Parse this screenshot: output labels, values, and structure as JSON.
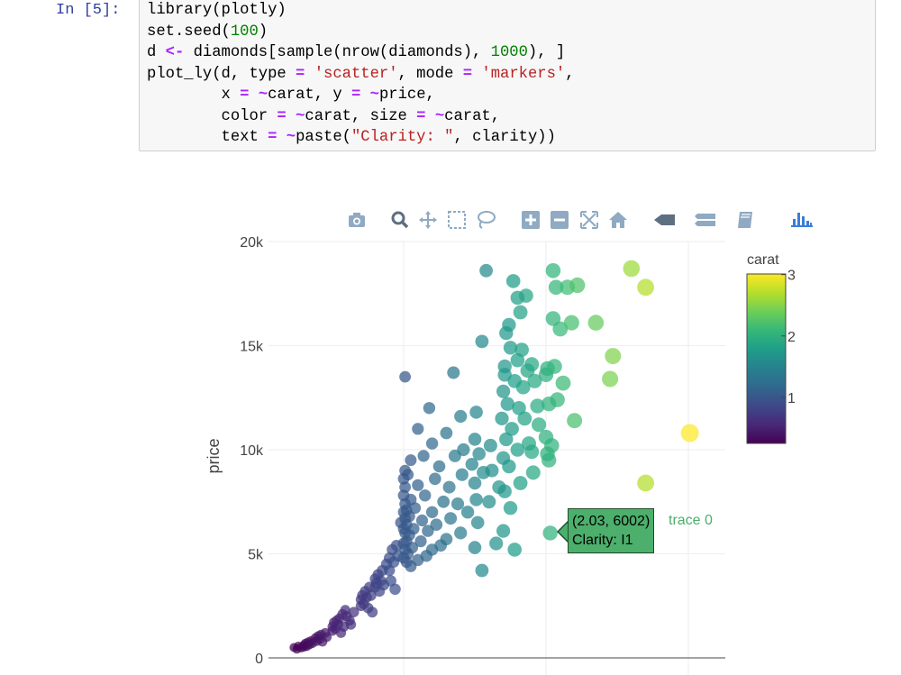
{
  "notebook": {
    "prompt": "In [5]:",
    "code_lines": [
      [
        [
          "plain",
          "library(plotly)"
        ]
      ],
      [
        [
          "plain",
          "set.seed("
        ],
        [
          "num",
          "100"
        ],
        [
          "plain",
          ")"
        ]
      ],
      [
        [
          "plain",
          "d "
        ],
        [
          "op",
          "<-"
        ],
        [
          "plain",
          " diamonds[sample(nrow(diamonds), "
        ],
        [
          "num",
          "1000"
        ],
        [
          "plain",
          "), ]"
        ]
      ],
      [
        [
          "plain",
          "plot_ly(d, type "
        ],
        [
          "op",
          "="
        ],
        [
          "plain",
          " "
        ],
        [
          "str",
          "'scatter'"
        ],
        [
          "plain",
          ", mode "
        ],
        [
          "op",
          "="
        ],
        [
          "plain",
          " "
        ],
        [
          "str",
          "'markers'"
        ],
        [
          "plain",
          ","
        ]
      ],
      [
        [
          "plain",
          "        x "
        ],
        [
          "op",
          "="
        ],
        [
          "plain",
          " "
        ],
        [
          "op",
          "~"
        ],
        [
          "plain",
          "carat, y "
        ],
        [
          "op",
          "="
        ],
        [
          "plain",
          " "
        ],
        [
          "op",
          "~"
        ],
        [
          "plain",
          "price,"
        ]
      ],
      [
        [
          "plain",
          "        color "
        ],
        [
          "op",
          "="
        ],
        [
          "plain",
          " "
        ],
        [
          "op",
          "~"
        ],
        [
          "plain",
          "carat, size "
        ],
        [
          "op",
          "="
        ],
        [
          "plain",
          " "
        ],
        [
          "op",
          "~"
        ],
        [
          "plain",
          "carat,"
        ]
      ],
      [
        [
          "plain",
          "        text "
        ],
        [
          "op",
          "="
        ],
        [
          "plain",
          " "
        ],
        [
          "op",
          "~"
        ],
        [
          "plain",
          "paste("
        ],
        [
          "str",
          "\"Clarity: \""
        ],
        [
          "plain",
          ", clarity))"
        ]
      ]
    ]
  },
  "modebar": {
    "buttons": [
      "camera-icon",
      "zoom-icon",
      "pan-icon",
      "box-select-icon",
      "lasso-icon",
      "zoom-in-icon",
      "zoom-out-icon",
      "autoscale-icon",
      "reset-axes-icon",
      "spike-lines-icon",
      "compare-hover-icon",
      "closest-hover-icon",
      "plotly-logo-icon"
    ]
  },
  "colors": {
    "grid": "#eeeeee",
    "axis_text": "#444444",
    "modebar": "#8faac2",
    "hover_bg": "#4caf6c"
  },
  "chart_data": {
    "type": "scatter",
    "xlabel": "",
    "ylabel": "price",
    "ylim": [
      0,
      20000
    ],
    "yticks": [
      {
        "value": 0,
        "label": "0"
      },
      {
        "value": 5000,
        "label": "5k"
      },
      {
        "value": 10000,
        "label": "10k"
      },
      {
        "value": 15000,
        "label": "15k"
      },
      {
        "value": 20000,
        "label": "20k"
      }
    ],
    "xgrid_values": [
      1,
      2,
      3
    ],
    "xlim": [
      0.1,
      3.25
    ],
    "grid": true,
    "colorbar": {
      "title": "carat",
      "range": [
        0.25,
        3.01
      ],
      "ticks": [
        {
          "value": 1,
          "label": "1"
        },
        {
          "value": 2,
          "label": "2"
        },
        {
          "value": 3,
          "label": "3"
        }
      ],
      "colorscale": [
        "#440154",
        "#482878",
        "#3e4989",
        "#31688e",
        "#26828e",
        "#1f9e89",
        "#35b779",
        "#6ece58",
        "#b5de2b",
        "#fde725"
      ]
    },
    "hover": {
      "point": [
        2.03,
        6002
      ],
      "coords_label": "(2.03, 6002)",
      "text": "Clarity:  I1",
      "trace_name": "trace 0"
    },
    "points": [
      [
        0.23,
        500
      ],
      [
        0.25,
        420
      ],
      [
        0.26,
        560
      ],
      [
        0.28,
        480
      ],
      [
        0.3,
        620
      ],
      [
        0.3,
        520
      ],
      [
        0.31,
        700
      ],
      [
        0.32,
        560
      ],
      [
        0.33,
        760
      ],
      [
        0.34,
        640
      ],
      [
        0.35,
        820
      ],
      [
        0.36,
        700
      ],
      [
        0.38,
        950
      ],
      [
        0.39,
        800
      ],
      [
        0.4,
        1050
      ],
      [
        0.41,
        900
      ],
      [
        0.42,
        1120
      ],
      [
        0.43,
        780
      ],
      [
        0.45,
        1200
      ],
      [
        0.46,
        1000
      ],
      [
        0.5,
        1500
      ],
      [
        0.5,
        1300
      ],
      [
        0.51,
        1700
      ],
      [
        0.52,
        1400
      ],
      [
        0.53,
        1800
      ],
      [
        0.54,
        1600
      ],
      [
        0.55,
        1900
      ],
      [
        0.56,
        1200
      ],
      [
        0.57,
        2100
      ],
      [
        0.58,
        1500
      ],
      [
        0.59,
        2300
      ],
      [
        0.6,
        2000
      ],
      [
        0.62,
        1800
      ],
      [
        0.63,
        1600
      ],
      [
        0.65,
        2200
      ],
      [
        0.7,
        2500
      ],
      [
        0.7,
        2800
      ],
      [
        0.71,
        3000
      ],
      [
        0.72,
        2600
      ],
      [
        0.73,
        3200
      ],
      [
        0.74,
        2900
      ],
      [
        0.75,
        2400
      ],
      [
        0.76,
        3400
      ],
      [
        0.77,
        3000
      ],
      [
        0.78,
        2200
      ],
      [
        0.8,
        3800
      ],
      [
        0.8,
        3400
      ],
      [
        0.81,
        3600
      ],
      [
        0.82,
        4000
      ],
      [
        0.83,
        3200
      ],
      [
        0.84,
        3700
      ],
      [
        0.85,
        4200
      ],
      [
        0.86,
        3500
      ],
      [
        0.88,
        4500
      ],
      [
        0.9,
        4800
      ],
      [
        0.9,
        4200
      ],
      [
        0.91,
        3700
      ],
      [
        0.92,
        5200
      ],
      [
        0.93,
        4600
      ],
      [
        0.94,
        3300
      ],
      [
        0.95,
        5400
      ],
      [
        0.96,
        4900
      ],
      [
        0.98,
        6500
      ],
      [
        1.0,
        5500
      ],
      [
        1.0,
        6200
      ],
      [
        1.0,
        7000
      ],
      [
        1.0,
        7800
      ],
      [
        1.0,
        4800
      ],
      [
        1.0,
        8600
      ],
      [
        1.01,
        5200
      ],
      [
        1.01,
        6000
      ],
      [
        1.01,
        6700
      ],
      [
        1.01,
        7400
      ],
      [
        1.01,
        8200
      ],
      [
        1.01,
        9000
      ],
      [
        1.01,
        13500
      ],
      [
        1.02,
        4600
      ],
      [
        1.02,
        5600
      ],
      [
        1.02,
        6400
      ],
      [
        1.02,
        7100
      ],
      [
        1.03,
        5000
      ],
      [
        1.03,
        8800
      ],
      [
        1.04,
        5900
      ],
      [
        1.04,
        6800
      ],
      [
        1.05,
        4400
      ],
      [
        1.05,
        7600
      ],
      [
        1.05,
        9500
      ],
      [
        1.06,
        5300
      ],
      [
        1.07,
        6200
      ],
      [
        1.08,
        7200
      ],
      [
        1.1,
        4700
      ],
      [
        1.1,
        8300
      ],
      [
        1.1,
        11000
      ],
      [
        1.12,
        5600
      ],
      [
        1.13,
        6600
      ],
      [
        1.14,
        9700
      ],
      [
        1.15,
        7800
      ],
      [
        1.16,
        4900
      ],
      [
        1.17,
        6100
      ],
      [
        1.18,
        12000
      ],
      [
        1.2,
        5200
      ],
      [
        1.2,
        7000
      ],
      [
        1.2,
        10300
      ],
      [
        1.22,
        8600
      ],
      [
        1.23,
        6400
      ],
      [
        1.25,
        9200
      ],
      [
        1.26,
        5400
      ],
      [
        1.28,
        7500
      ],
      [
        1.3,
        10800
      ],
      [
        1.3,
        5700
      ],
      [
        1.32,
        8200
      ],
      [
        1.33,
        6700
      ],
      [
        1.35,
        13700
      ],
      [
        1.36,
        9700
      ],
      [
        1.38,
        7400
      ],
      [
        1.4,
        6000
      ],
      [
        1.4,
        11600
      ],
      [
        1.41,
        8800
      ],
      [
        1.42,
        10000
      ],
      [
        1.45,
        7000
      ],
      [
        1.48,
        9300
      ],
      [
        1.5,
        5300
      ],
      [
        1.5,
        8400
      ],
      [
        1.5,
        10500
      ],
      [
        1.51,
        11800
      ],
      [
        1.51,
        7600
      ],
      [
        1.52,
        6500
      ],
      [
        1.53,
        9800
      ],
      [
        1.55,
        4200
      ],
      [
        1.55,
        15200
      ],
      [
        1.56,
        8900
      ],
      [
        1.58,
        18600
      ],
      [
        1.6,
        7500
      ],
      [
        1.61,
        10200
      ],
      [
        1.62,
        9000
      ],
      [
        1.65,
        5500
      ],
      [
        1.67,
        8200
      ],
      [
        1.69,
        11500
      ],
      [
        1.7,
        12800
      ],
      [
        1.7,
        9600
      ],
      [
        1.7,
        6100
      ],
      [
        1.71,
        13600
      ],
      [
        1.71,
        14000
      ],
      [
        1.71,
        8000
      ],
      [
        1.72,
        15600
      ],
      [
        1.72,
        10500
      ],
      [
        1.73,
        12200
      ],
      [
        1.74,
        16000
      ],
      [
        1.74,
        9200
      ],
      [
        1.75,
        14900
      ],
      [
        1.75,
        7200
      ],
      [
        1.76,
        11000
      ],
      [
        1.77,
        18100
      ],
      [
        1.78,
        13300
      ],
      [
        1.78,
        5200
      ],
      [
        1.8,
        14300
      ],
      [
        1.8,
        10000
      ],
      [
        1.8,
        17300
      ],
      [
        1.81,
        12000
      ],
      [
        1.82,
        16600
      ],
      [
        1.82,
        8400
      ],
      [
        1.83,
        14800
      ],
      [
        1.84,
        13000
      ],
      [
        1.85,
        11500
      ],
      [
        1.86,
        17400
      ],
      [
        1.87,
        13800
      ],
      [
        1.88,
        10300
      ],
      [
        1.9,
        14100
      ],
      [
        1.9,
        9900
      ],
      [
        1.91,
        8900
      ],
      [
        1.92,
        13300
      ],
      [
        1.94,
        12100
      ],
      [
        1.95,
        11200
      ],
      [
        2.0,
        13600
      ],
      [
        2.0,
        10600
      ],
      [
        2.01,
        9800
      ],
      [
        2.01,
        13900
      ],
      [
        2.02,
        12200
      ],
      [
        2.02,
        9500
      ],
      [
        2.03,
        6002
      ],
      [
        2.04,
        10200
      ],
      [
        2.05,
        16300
      ],
      [
        2.05,
        18600
      ],
      [
        2.06,
        14000
      ],
      [
        2.07,
        17800
      ],
      [
        2.08,
        12400
      ],
      [
        2.1,
        15800
      ],
      [
        2.12,
        13200
      ],
      [
        2.15,
        17800
      ],
      [
        2.18,
        16100
      ],
      [
        2.2,
        11400
      ],
      [
        2.22,
        17900
      ],
      [
        2.35,
        16100
      ],
      [
        2.45,
        13400
      ],
      [
        2.47,
        14500
      ],
      [
        2.6,
        18700
      ],
      [
        2.7,
        17800
      ],
      [
        2.7,
        8400
      ],
      [
        3.01,
        10800
      ]
    ]
  }
}
